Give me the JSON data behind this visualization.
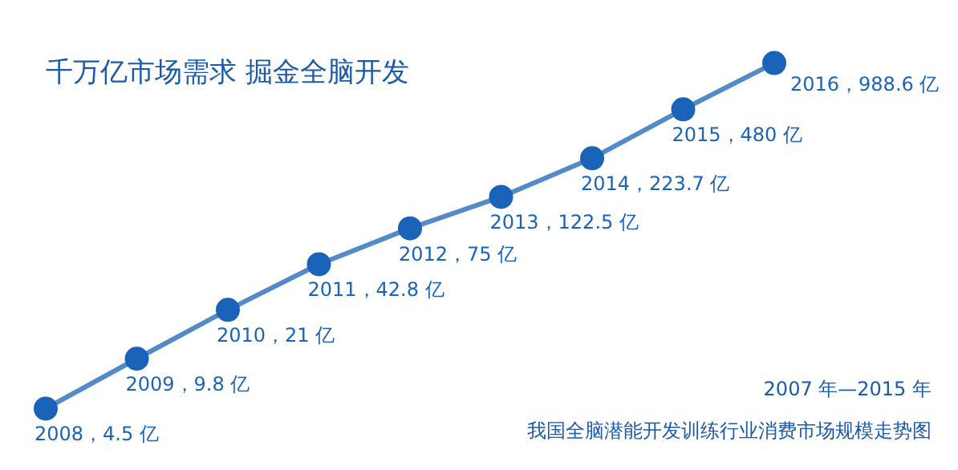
{
  "chart_data": {
    "type": "line",
    "title": "千万亿市场需求 掘金全脑开发",
    "categories": [
      null,
      null,
      null,
      null,
      null,
      null,
      null,
      null,
      null
    ],
    "values": [
      4.5,
      9.8,
      21,
      42.8,
      75,
      122.5,
      223.7,
      480,
      988.6
    ],
    "value_labels": [
      "2008，4.5 亿",
      "2009，9.8 亿",
      "2010，21 亿",
      "2011，42.8 亿",
      "2012，75 亿",
      "2013，122.5 亿",
      "2014，223.7 亿",
      "2015，480 亿",
      "2016，988.6 亿"
    ],
    "color": "#1a63b8",
    "log": "y",
    "tick_labels": false,
    "marker": "circle",
    "annotations": [
      "2007 年—2015 年",
      "我国全脑潜能开发训练行业消费市场规模走势图"
    ]
  }
}
